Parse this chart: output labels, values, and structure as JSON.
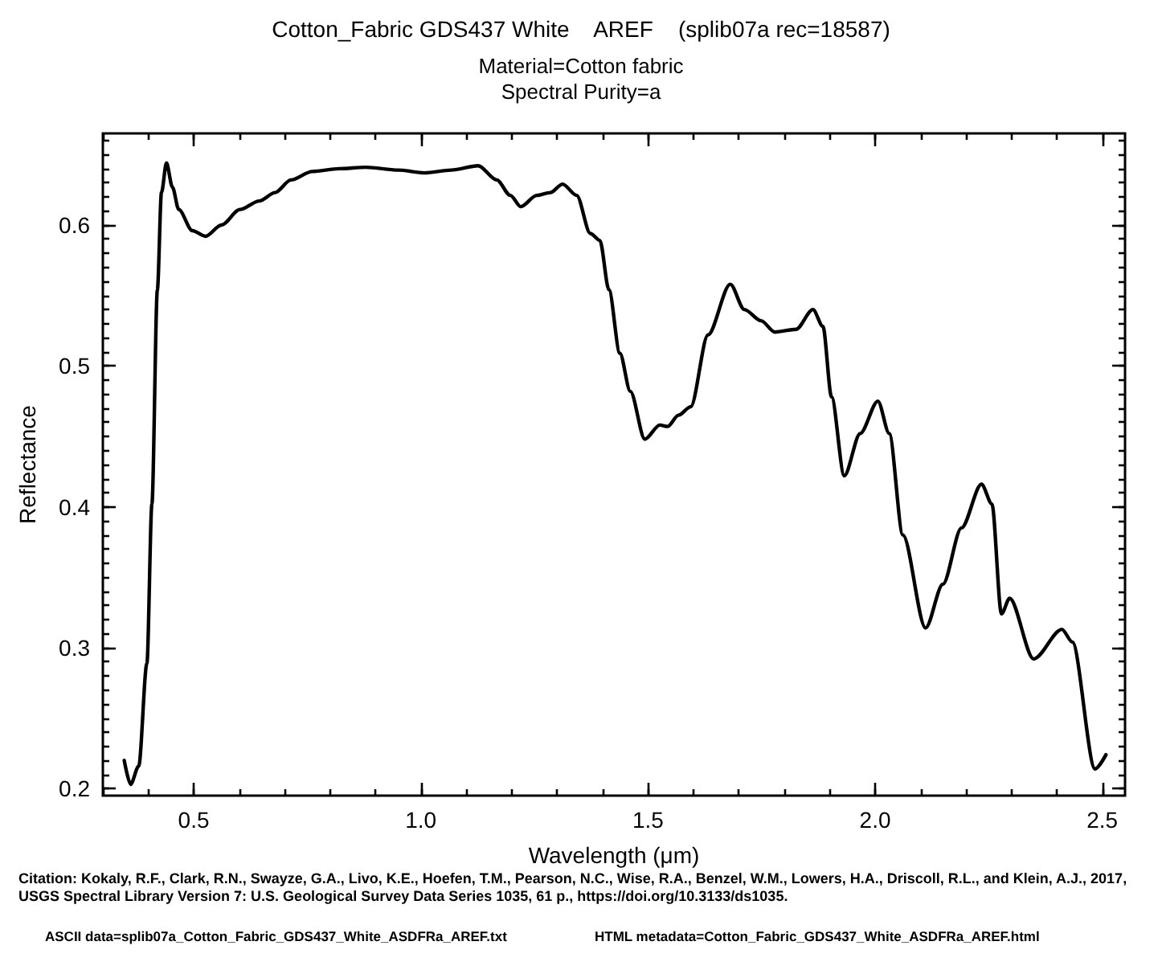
{
  "chart_data": {
    "type": "line",
    "title": "Cotton_Fabric GDS437 White    AREF    (splib07a rec=18587)",
    "subtitle": "Material=Cotton fabric\nSpectral Purity=a",
    "xlabel": "Wavelength (μm)",
    "ylabel": "Reflectance",
    "annotations": [
      "Citation: Kokaly, R.F., Clark, R.N., Swayze, G.A., Livo, K.E., Hoefen, T.M., Pearson, N.C., Wise, R.A., Benzel, W.M., Lowers, H.A., Driscoll, R.L., and Klein, A.J., 2017, USGS Spectral Library Version 7: U.S. Geological Survey Data Series 1035, 61 p., https://doi.org/10.3133/ds1035.",
      "ASCII data=splib07a_Cotton_Fabric_GDS437_White_ASDFRa_AREF.txt",
      "HTML metadata=Cotton_Fabric_GDS437_White_ASDFRa_AREF.html"
    ],
    "x": [
      0.347,
      0.361,
      0.379,
      0.397,
      0.408,
      0.42,
      0.429,
      0.44,
      0.453,
      0.467,
      0.497,
      0.526,
      0.561,
      0.602,
      0.644,
      0.679,
      0.714,
      0.761,
      0.82,
      0.879,
      0.95,
      1.008,
      1.067,
      1.126,
      1.167,
      1.197,
      1.22,
      1.255,
      1.285,
      1.312,
      1.343,
      1.373,
      1.394,
      1.414,
      1.438,
      1.461,
      1.493,
      1.526,
      1.543,
      1.567,
      1.594,
      1.632,
      1.681,
      1.712,
      1.749,
      1.779,
      1.826,
      1.863,
      1.885,
      1.904,
      1.932,
      1.967,
      2.006,
      2.031,
      2.061,
      2.111,
      2.149,
      2.19,
      2.234,
      2.257,
      2.278,
      2.296,
      2.349,
      2.411,
      2.434,
      2.484,
      2.508
    ],
    "series": [
      {
        "color": "#000000",
        "values": [
          0.22,
          0.203,
          0.216,
          0.289,
          0.402,
          0.554,
          0.623,
          0.644,
          0.627,
          0.611,
          0.596,
          0.592,
          0.6,
          0.611,
          0.617,
          0.623,
          0.632,
          0.638,
          0.64,
          0.641,
          0.639,
          0.637,
          0.639,
          0.642,
          0.632,
          0.621,
          0.613,
          0.621,
          0.623,
          0.629,
          0.621,
          0.594,
          0.589,
          0.554,
          0.509,
          0.482,
          0.448,
          0.458,
          0.457,
          0.465,
          0.471,
          0.522,
          0.558,
          0.54,
          0.532,
          0.524,
          0.526,
          0.54,
          0.528,
          0.478,
          0.422,
          0.452,
          0.475,
          0.452,
          0.38,
          0.314,
          0.345,
          0.385,
          0.416,
          0.402,
          0.324,
          0.335,
          0.292,
          0.313,
          0.304,
          0.214,
          0.224
        ]
      }
    ],
    "xlim": [
      0.3,
      2.55
    ],
    "xticks": [
      0.5,
      {
        "value": 1,
        "label": "1.0"
      },
      1.5,
      {
        "value": 2,
        "label": "2.0"
      },
      2.5
    ],
    "ylim": [
      0.195,
      0.665
    ],
    "yticks": [
      0.2,
      0.3,
      0.4,
      0.5,
      0.6
    ],
    "grid": false,
    "marker": "none",
    "line_style": "solid"
  }
}
